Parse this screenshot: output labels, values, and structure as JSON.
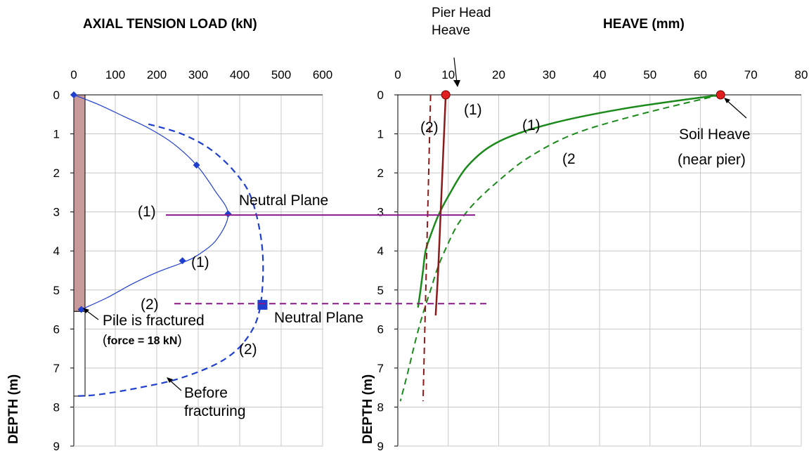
{
  "chart_data": [
    {
      "type": "line",
      "title": "AXIAL TENSION LOAD (kN)",
      "xlabel": "AXIAL TENSION LOAD (kN)",
      "ylabel": "DEPTH (m)",
      "xlim": [
        0,
        600
      ],
      "ylim": [
        0,
        9
      ],
      "y_inverted": true,
      "xticks": [
        "0",
        "100",
        "200",
        "300",
        "400",
        "500",
        "600"
      ],
      "yticks": [
        "0",
        "1",
        "2",
        "3",
        "4",
        "5",
        "6",
        "7",
        "8",
        "9"
      ],
      "grid": true,
      "series": [
        {
          "name": "(1)",
          "color": "#1f3fcf",
          "style": "solid",
          "x": [
            0,
            60,
            120,
            180,
            240,
            296,
            340,
            372,
            345,
            300,
            262,
            200,
            140,
            80,
            18
          ],
          "y": [
            0,
            0.25,
            0.55,
            0.85,
            1.25,
            1.8,
            2.45,
            3.05,
            3.7,
            4.1,
            4.3,
            4.55,
            4.85,
            5.2,
            5.5
          ]
        },
        {
          "name": "(2)",
          "color": "#1f3fcf",
          "style": "dashed",
          "x": [
            180,
            260,
            330,
            390,
            430,
            455,
            450,
            420,
            360,
            260,
            160,
            60,
            0
          ],
          "y": [
            0.75,
            1.0,
            1.4,
            2.0,
            2.7,
            4.0,
            5.4,
            6.2,
            6.8,
            7.25,
            7.5,
            7.68,
            7.72
          ]
        }
      ],
      "markers": [
        {
          "x": 0,
          "y": 0,
          "shape": "diamond"
        },
        {
          "x": 296,
          "y": 1.8,
          "shape": "diamond"
        },
        {
          "x": 372,
          "y": 3.05,
          "shape": "diamond"
        },
        {
          "x": 262,
          "y": 4.25,
          "shape": "diamond"
        },
        {
          "x": 18,
          "y": 5.5,
          "shape": "diamond"
        },
        {
          "x": 455,
          "y": 5.38,
          "shape": "square"
        }
      ],
      "pile": {
        "intact_depth": [
          0,
          5.55
        ],
        "fractured_depth": [
          5.55,
          7.72
        ],
        "intact_color": "#c99a9a"
      },
      "annotations": {
        "neutral_plane_1": "Neutral Plane",
        "label_1_np": "(1)",
        "label_1_low": "(1)",
        "label_2_np": "(2)",
        "label_2_low": "(2)",
        "pile_fractured": "Pile is fractured",
        "force_prefix": "(",
        "force_bold": "force = 18 kN",
        "force_suffix": ")",
        "before_1": "Before",
        "before_2": "fracturing"
      }
    },
    {
      "type": "line",
      "title": "HEAVE (mm)",
      "xlabel": "HEAVE (mm)",
      "ylabel": "DEPTH (m)",
      "xlim": [
        0,
        80
      ],
      "ylim": [
        0,
        9
      ],
      "y_inverted": true,
      "xticks": [
        "0",
        "10",
        "20",
        "30",
        "40",
        "50",
        "60",
        "70",
        "80"
      ],
      "yticks": [
        "0",
        "1",
        "2",
        "3",
        "4",
        "5",
        "6",
        "7",
        "8",
        "9"
      ],
      "grid": true,
      "series": [
        {
          "name": "(1)",
          "color": "#1a8a1a",
          "style": "solid",
          "x": [
            64,
            45,
            30,
            20,
            14,
            10,
            8,
            6.5,
            5.5,
            5,
            4.5,
            4
          ],
          "y": [
            0,
            0.35,
            0.75,
            1.2,
            1.8,
            2.6,
            3.1,
            3.6,
            4.0,
            4.5,
            5.0,
            5.45
          ]
        },
        {
          "name": "(2)",
          "color": "#1a8a1a",
          "style": "dashed",
          "x": [
            64,
            48,
            35,
            26,
            20,
            15,
            12,
            10,
            8,
            6.5,
            5,
            3.5,
            2,
            0.5
          ],
          "y": [
            0,
            0.5,
            1.0,
            1.6,
            2.2,
            2.8,
            3.3,
            3.8,
            4.4,
            5.0,
            5.6,
            6.3,
            7.1,
            7.85
          ]
        },
        {
          "name": "Pier (1)",
          "color": "#8b1a1a",
          "style": "solid",
          "x": [
            9.5,
            9.0,
            8.5,
            8.0,
            7.5
          ],
          "y": [
            0,
            1.5,
            3.0,
            4.5,
            5.65
          ]
        },
        {
          "name": "Pier (2)",
          "color": "#8b1a1a",
          "style": "dashed",
          "x": [
            6.5,
            5.0
          ],
          "y": [
            0,
            7.85
          ]
        }
      ],
      "markers": [
        {
          "x": 9.5,
          "y": 0,
          "shape": "circle",
          "color": "#e02020"
        },
        {
          "x": 64,
          "y": 0,
          "shape": "circle",
          "color": "#e02020"
        }
      ],
      "annotations": {
        "pier_head_1": "Pier Head",
        "pier_head_2": "Heave",
        "label_1_pier": "(1)",
        "label_2_pier": "(2)",
        "label_1_soil": "(1)",
        "label_2_soil": "(2",
        "soil_heave_1": "Soil Heave",
        "soil_heave_2": "(near pier)",
        "neutral_plane_2": "Neutral Plane"
      }
    }
  ],
  "neutral_plane_lines": [
    {
      "name": "(1)",
      "depth": 3.08,
      "color": "#8a1a8a",
      "style": "solid"
    },
    {
      "name": "(2)",
      "depth": 5.35,
      "color": "#8a1a8a",
      "style": "dashed"
    }
  ]
}
